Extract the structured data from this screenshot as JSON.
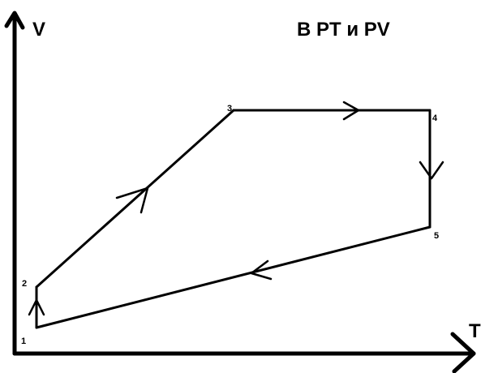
{
  "diagram": {
    "title": "В PT и PV",
    "axes": {
      "x_label": "T",
      "y_label": "V"
    },
    "points": [
      {
        "label": "1"
      },
      {
        "label": "2"
      },
      {
        "label": "3"
      },
      {
        "label": "4"
      },
      {
        "label": "5"
      }
    ],
    "cycle": "1 → 2 → 3 → 4 → 5 → 1"
  }
}
